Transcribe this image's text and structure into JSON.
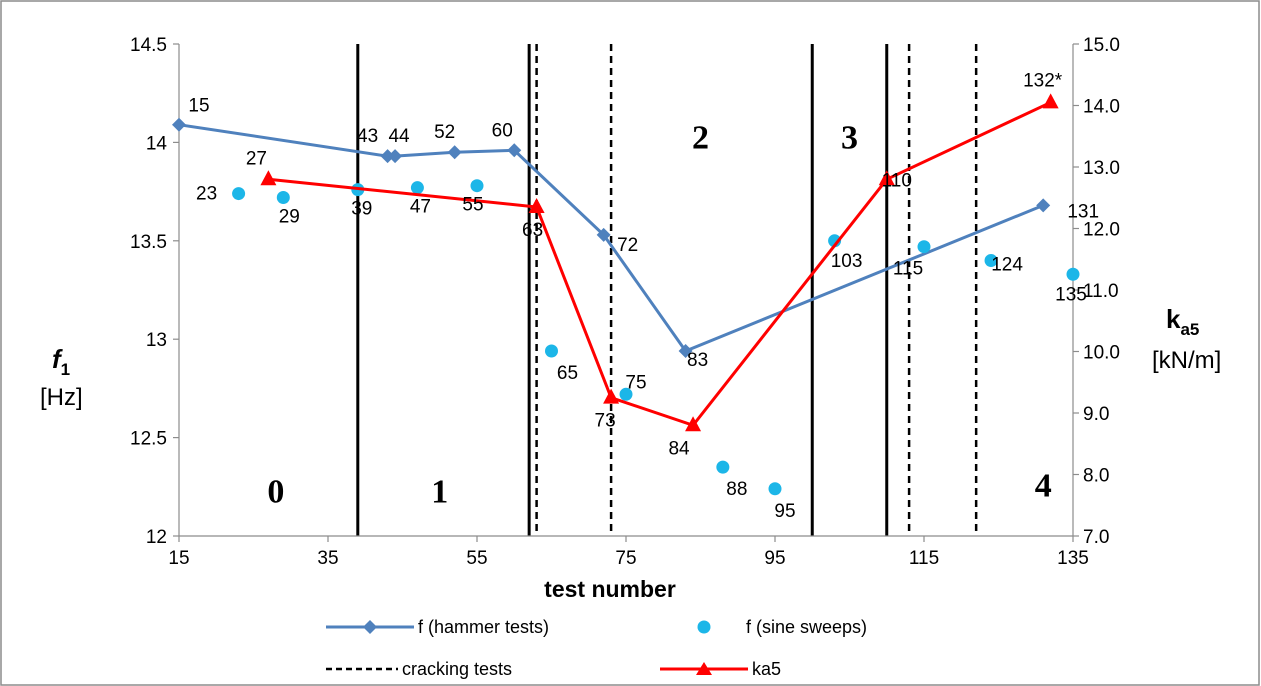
{
  "chart_data": {
    "type": "line",
    "xlabel": "test number",
    "ylabel_left": {
      "symbol": "f",
      "sub": "1",
      "unit": "[Hz]"
    },
    "ylabel_right": {
      "symbol": "k",
      "sub": "a5",
      "unit": "[kN/m]"
    },
    "xlim": [
      15,
      135
    ],
    "ylim_left": [
      12,
      14.5
    ],
    "ylim_right": [
      7,
      15
    ],
    "x_ticks": [
      "15",
      "35",
      "55",
      "75",
      "95",
      "115",
      "135"
    ],
    "y_ticks_left": [
      "12",
      "12.5",
      "13",
      "13.5",
      "14",
      "14.5"
    ],
    "y_ticks_right": [
      "7.0",
      "8.0",
      "9.0",
      "10.0",
      "11.0",
      "12.0",
      "13.0",
      "14.0",
      "15.0"
    ],
    "grid": false,
    "legend_position": "bottom",
    "colors": {
      "hammer": "#4F81BD",
      "sine": "#1CB6E8",
      "ka5": "#FF0000",
      "cracking": "#000000"
    },
    "series": [
      {
        "name": "f (hammer tests)",
        "axis": "left",
        "x": [
          15,
          43,
          44,
          52,
          60,
          72,
          83,
          131
        ],
        "y": [
          14.09,
          13.93,
          13.93,
          13.95,
          13.96,
          13.53,
          12.94,
          13.68
        ],
        "labels": [
          "15",
          "43",
          "44",
          "52",
          "60",
          "72",
          "83",
          "131"
        ]
      },
      {
        "name": "f (sine sweeps)",
        "axis": "left",
        "x": [
          23,
          29,
          39,
          47,
          55,
          65,
          75,
          88,
          95,
          103,
          115,
          124,
          135
        ],
        "y": [
          13.74,
          13.72,
          13.76,
          13.77,
          13.78,
          12.94,
          12.72,
          12.35,
          12.24,
          13.5,
          13.47,
          13.4,
          13.33
        ],
        "labels": [
          "23",
          "29",
          "39",
          "47",
          "55",
          "65",
          "75",
          "88",
          "95",
          "103",
          "115",
          "124",
          "135"
        ]
      },
      {
        "name": "ka5",
        "axis": "right",
        "x": [
          27,
          63,
          73,
          84,
          110,
          132
        ],
        "y": [
          12.8,
          12.35,
          9.25,
          8.8,
          12.8,
          14.05
        ],
        "labels": [
          "27",
          "63",
          "73",
          "84",
          "110",
          "132*"
        ]
      }
    ],
    "phase_boundaries": [
      39,
      62,
      100,
      110
    ],
    "cracking_tests": [
      63,
      73,
      113,
      122
    ],
    "phase_labels": [
      {
        "text": "0",
        "x": 28,
        "y": 12.17
      },
      {
        "text": "1",
        "x": 50,
        "y": 12.17
      },
      {
        "text": "2",
        "x": 85,
        "y": 13.97
      },
      {
        "text": "3",
        "x": 105,
        "y": 13.97
      },
      {
        "text": "4",
        "x": 131,
        "y": 12.2
      }
    ],
    "legend": [
      {
        "label": "f (hammer tests)",
        "kind": "hammer"
      },
      {
        "label": "f (sine sweeps)",
        "kind": "sine"
      },
      {
        "label": "cracking tests",
        "kind": "cracking"
      },
      {
        "label": "ka5",
        "kind": "ka5"
      }
    ]
  }
}
